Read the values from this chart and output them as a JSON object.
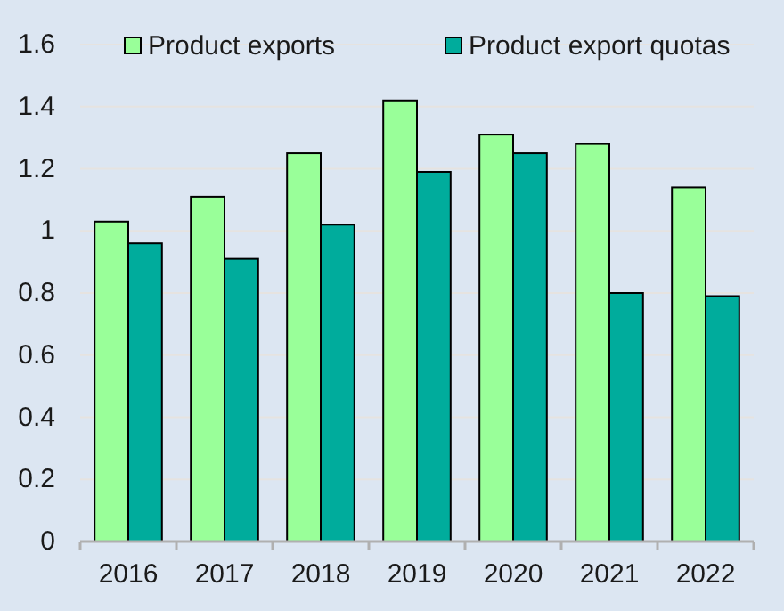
{
  "chart_data": {
    "type": "bar",
    "categories": [
      "2016",
      "2017",
      "2018",
      "2019",
      "2020",
      "2021",
      "2022"
    ],
    "series": [
      {
        "name": "Product exports",
        "color": "#99ff99",
        "values": [
          1.03,
          1.11,
          1.25,
          1.42,
          1.31,
          1.28,
          1.14
        ]
      },
      {
        "name": "Product export quotas",
        "color": "#00ac9c",
        "values": [
          0.96,
          0.91,
          1.02,
          1.19,
          1.25,
          0.8,
          0.79
        ]
      }
    ],
    "ylim": [
      0,
      1.6
    ],
    "yticks": [
      0,
      0.2,
      0.4,
      0.6,
      0.8,
      1,
      1.2,
      1.4,
      1.6
    ],
    "grid": "y",
    "legend": "top"
  }
}
